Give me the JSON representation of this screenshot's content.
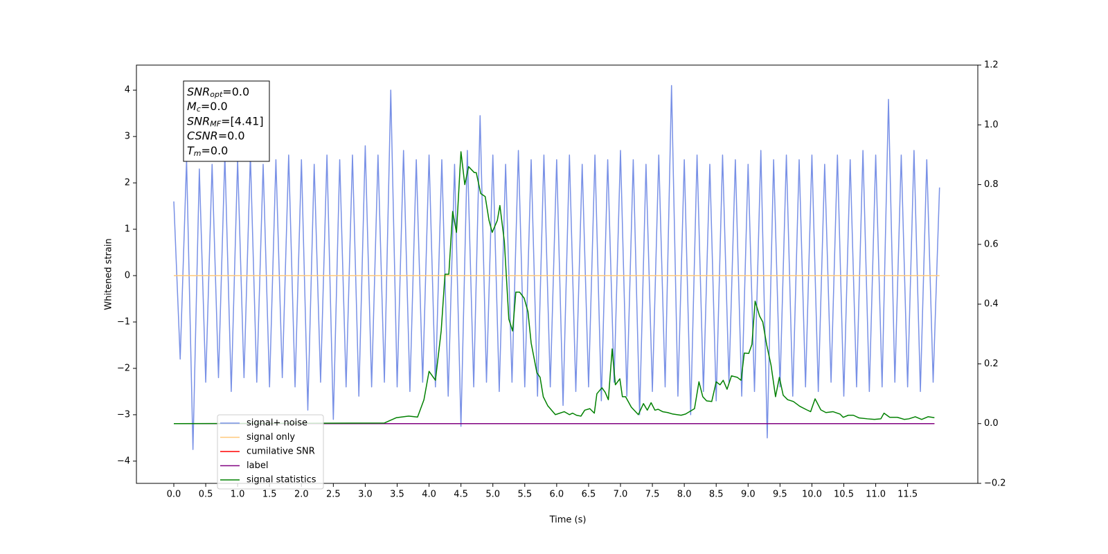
{
  "chart_data": {
    "type": "line",
    "xlabel": "Time (s)",
    "ylabel": "Whitened strain",
    "xlim": [
      -0.586,
      12.6
    ],
    "ylim": [
      -4.48,
      4.54
    ],
    "y2lim": [
      -0.2,
      1.2
    ],
    "xticks": [
      {
        "value": 0,
        "label": "0.0"
      },
      0.5,
      {
        "value": 1,
        "label": "1.0"
      },
      1.5,
      {
        "value": 2,
        "label": "2.0"
      },
      2.5,
      {
        "value": 3,
        "label": "3.0"
      },
      3.5,
      {
        "value": 4,
        "label": "4.0"
      },
      4.5,
      {
        "value": 5,
        "label": "5.0"
      },
      5.5,
      {
        "value": 6,
        "label": "6.0"
      },
      6.5,
      {
        "value": 7,
        "label": "7.0"
      },
      7.5,
      {
        "value": 8,
        "label": "8.0"
      },
      8.5,
      {
        "value": 9,
        "label": "9.0"
      },
      9.5,
      {
        "value": 10,
        "label": "10.0"
      },
      10.5,
      {
        "value": 11,
        "label": "11.0"
      },
      11.5
    ],
    "yticks": [
      {
        "value": -4,
        "label": "−4"
      },
      {
        "value": -3,
        "label": "−3"
      },
      {
        "value": -2,
        "label": "−2"
      },
      {
        "value": -1,
        "label": "−1"
      },
      0,
      1,
      2,
      3,
      4
    ],
    "y2ticks": [
      {
        "value": -0.2,
        "label": "−0.2"
      },
      {
        "value": 0,
        "label": "0.0"
      },
      0.2,
      0.4,
      0.6,
      0.8,
      {
        "value": 1,
        "label": "1.0"
      },
      1.2
    ],
    "legend": "lower left",
    "annotation": [
      {
        "text": "SNR",
        "sub": "opt",
        "after": "=0.0"
      },
      {
        "text": "M",
        "sub": "c",
        "after": "=0.0"
      },
      {
        "text": "SNR",
        "sub": "MF",
        "after": "=[4.41]"
      },
      {
        "text": "CSNR",
        "after": "=0.0"
      },
      {
        "text": "T",
        "sub": "m",
        "after": "=0.0"
      }
    ],
    "series": [
      {
        "name": "signal+ noise",
        "color": "#7890e6",
        "x": [
          0,
          0.1,
          0.2,
          0.3,
          0.4,
          0.5,
          0.6,
          0.7,
          0.8,
          0.9,
          1,
          1.1,
          1.2,
          1.3,
          1.4,
          1.5,
          1.6,
          1.7,
          1.8,
          1.9,
          2,
          2.1,
          2.2,
          2.3,
          2.4,
          2.5,
          2.6,
          2.7,
          2.8,
          2.9,
          3,
          3.1,
          3.2,
          3.3,
          3.4,
          3.5,
          3.6,
          3.7,
          3.8,
          3.9,
          4,
          4.1,
          4.2,
          4.3,
          4.4,
          4.5,
          4.6,
          4.7,
          4.8,
          4.9,
          5,
          5.1,
          5.2,
          5.3,
          5.4,
          5.5,
          5.6,
          5.7,
          5.8,
          5.9,
          6,
          6.1,
          6.2,
          6.3,
          6.4,
          6.5,
          6.6,
          6.7,
          6.8,
          6.9,
          7,
          7.1,
          7.2,
          7.3,
          7.4,
          7.5,
          7.6,
          7.7,
          7.8,
          7.9,
          8,
          8.1,
          8.2,
          8.3,
          8.4,
          8.5,
          8.6,
          8.7,
          8.8,
          8.9,
          9,
          9.1,
          9.2,
          9.3,
          9.4,
          9.5,
          9.6,
          9.7,
          9.8,
          9.9,
          10,
          10.1,
          10.2,
          10.3,
          10.4,
          10.5,
          10.6,
          10.7,
          10.8,
          10.9,
          11,
          11.1,
          11.2,
          11.3,
          11.4,
          11.5,
          11.6,
          11.7,
          11.8,
          11.9,
          12
        ],
        "values": [
          1.6,
          -1.8,
          2.5,
          -3.75,
          2.3,
          -2.3,
          2.4,
          -2.2,
          2.6,
          -2.5,
          2.5,
          -2.2,
          2.6,
          -2.3,
          2.4,
          -2.4,
          2.5,
          -2.2,
          2.6,
          -2.4,
          2.5,
          -2.9,
          2.4,
          -2.3,
          2.6,
          -3.1,
          2.5,
          -2.4,
          2.6,
          -2.6,
          2.8,
          -2.4,
          2.6,
          -2.3,
          4.0,
          -2.4,
          2.7,
          -2.5,
          2.5,
          -2.3,
          2.6,
          -2.4,
          2.5,
          -2.6,
          2.4,
          -3.25,
          2.7,
          -2.4,
          3.45,
          -2.3,
          2.6,
          -2.5,
          2.4,
          -2.3,
          2.7,
          -2.4,
          2.5,
          -2.6,
          2.6,
          -2.4,
          2.5,
          -2.8,
          2.6,
          -2.5,
          2.4,
          -2.4,
          2.6,
          -2.7,
          2.5,
          -2.3,
          2.7,
          -2.6,
          2.5,
          -3.0,
          2.4,
          -2.5,
          2.6,
          -2.4,
          4.1,
          -2.6,
          2.5,
          -3.0,
          2.6,
          -2.5,
          2.4,
          -2.7,
          2.6,
          -2.3,
          2.5,
          -2.6,
          2.4,
          -2.5,
          2.7,
          -3.5,
          2.5,
          -2.4,
          2.6,
          -2.6,
          2.5,
          -2.4,
          2.6,
          -2.5,
          2.4,
          -2.3,
          2.6,
          -2.6,
          2.5,
          -2.4,
          2.7,
          -2.5,
          2.6,
          -2.4,
          3.8,
          -2.3,
          2.6,
          -2.4,
          2.7,
          -2.5,
          2.5,
          -2.3,
          1.9
        ]
      },
      {
        "name": "signal only",
        "color": "#ffc87a",
        "x": [
          0,
          12
        ],
        "values": [
          0,
          0
        ]
      },
      {
        "name": "cumilative SNR",
        "color": "#ff0000",
        "axis": "y2",
        "x": [
          0,
          11.92
        ],
        "values": [
          0,
          0
        ]
      },
      {
        "name": "label",
        "color": "#800080",
        "axis": "y2",
        "x": [
          0,
          11.92
        ],
        "values": [
          0,
          0
        ]
      },
      {
        "name": "signal statistics",
        "color": "#008000",
        "axis": "y2",
        "x": [
          0,
          3.3,
          3.49,
          3.68,
          3.82,
          3.92,
          4.0,
          4.1,
          4.19,
          4.25,
          4.31,
          4.37,
          4.43,
          4.5,
          4.56,
          4.62,
          4.71,
          4.74,
          4.81,
          4.88,
          4.94,
          4.99,
          5.07,
          5.11,
          5.18,
          5.25,
          5.31,
          5.36,
          5.42,
          5.49,
          5.55,
          5.6,
          5.69,
          5.74,
          5.79,
          5.86,
          5.98,
          6.12,
          6.2,
          6.25,
          6.31,
          6.38,
          6.44,
          6.52,
          6.59,
          6.63,
          6.71,
          6.76,
          6.81,
          6.87,
          6.92,
          6.99,
          7.03,
          7.08,
          7.17,
          7.28,
          7.36,
          7.42,
          7.48,
          7.54,
          7.59,
          7.66,
          7.74,
          7.82,
          7.95,
          8.02,
          8.16,
          8.23,
          8.29,
          8.35,
          8.43,
          8.5,
          8.56,
          8.61,
          8.67,
          8.74,
          8.83,
          8.89,
          8.94,
          9.01,
          9.06,
          9.11,
          9.18,
          9.23,
          9.29,
          9.36,
          9.43,
          9.49,
          9.55,
          9.62,
          9.71,
          9.81,
          9.92,
          9.98,
          10.05,
          10.14,
          10.22,
          10.33,
          10.44,
          10.49,
          10.57,
          10.65,
          10.74,
          10.87,
          10.98,
          11.08,
          11.13,
          11.22,
          11.34,
          11.45,
          11.52,
          11.62,
          11.72,
          11.82,
          11.92
        ],
        "values": [
          0,
          0.002,
          0.02,
          0.025,
          0.022,
          0.08,
          0.175,
          0.145,
          0.31,
          0.5,
          0.5,
          0.71,
          0.64,
          0.91,
          0.8,
          0.86,
          0.84,
          0.84,
          0.77,
          0.76,
          0.68,
          0.64,
          0.68,
          0.73,
          0.61,
          0.35,
          0.31,
          0.44,
          0.44,
          0.42,
          0.375,
          0.27,
          0.17,
          0.155,
          0.09,
          0.06,
          0.03,
          0.04,
          0.03,
          0.035,
          0.028,
          0.025,
          0.045,
          0.05,
          0.035,
          0.1,
          0.12,
          0.105,
          0.08,
          0.25,
          0.13,
          0.15,
          0.09,
          0.09,
          0.055,
          0.03,
          0.067,
          0.045,
          0.07,
          0.045,
          0.048,
          0.04,
          0.037,
          0.032,
          0.028,
          0.032,
          0.05,
          0.14,
          0.09,
          0.076,
          0.074,
          0.14,
          0.13,
          0.145,
          0.115,
          0.16,
          0.155,
          0.145,
          0.236,
          0.235,
          0.265,
          0.41,
          0.36,
          0.34,
          0.265,
          0.195,
          0.09,
          0.155,
          0.095,
          0.08,
          0.074,
          0.058,
          0.046,
          0.04,
          0.083,
          0.046,
          0.037,
          0.04,
          0.032,
          0.021,
          0.028,
          0.028,
          0.019,
          0.016,
          0.014,
          0.016,
          0.035,
          0.021,
          0.021,
          0.014,
          0.016,
          0.023,
          0.014,
          0.023,
          0.02
        ]
      }
    ]
  }
}
